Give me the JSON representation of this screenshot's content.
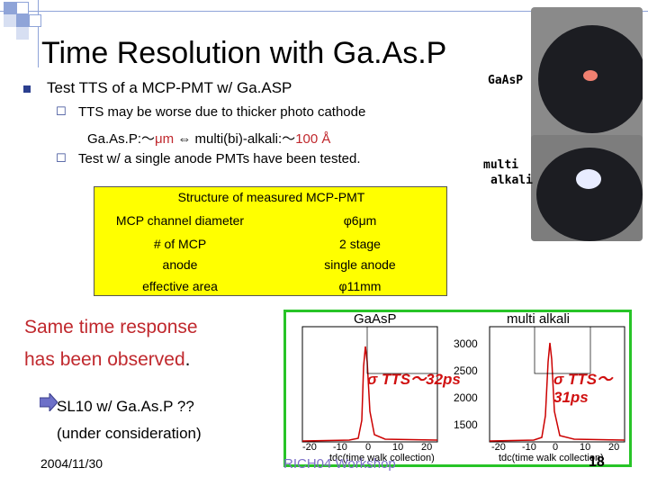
{
  "slide": {
    "title": "Time Resolution with Ga.As.P",
    "bullet1": "Test TTS of a MCP-PMT w/ Ga.ASP",
    "sub1_line1": "TTS may be worse due to thicker photo cathode",
    "sub1_line2_prefix": "Ga.As.P:～",
    "sub1_line2_unit": "μm",
    "sub1_line2_mid": " ⇔ multi(bi)-alkali:～",
    "sub1_line2_red": "100 Å",
    "sub2": "Test w/ a single anode PMTs have been tested.",
    "table": {
      "header": "Structure of measured MCP-PMT",
      "rows": [
        {
          "label": "MCP channel diameter",
          "value": "φ6μm"
        },
        {
          "label": "# of MCP",
          "value": "2 stage"
        },
        {
          "label": "anode",
          "value": "single anode"
        },
        {
          "label": "effective area",
          "value": "φ11mm"
        }
      ]
    },
    "statement_line1": "Same time response",
    "statement_line2": "has been observed",
    "statement_dot": ".",
    "next_line1": "SL10 w/ Ga.As.P ??",
    "next_line2": "(under consideration)",
    "date": "2004/11/30",
    "conference": "RICH04 Workshop",
    "page": "18",
    "photo_label1": "GaAsP",
    "photo_label2a": "multi",
    "photo_label2b": "alkali"
  },
  "plots": {
    "left_title": "GaAsP",
    "right_title": "multi alkali",
    "left_annotation": "σ TTS～32ps",
    "right_annotation": "σ TTS～31ps",
    "xlabel": "tdc(time walk collection)",
    "y_ticks_right": [
      "3000",
      "2500",
      "2000",
      "1500"
    ],
    "x_ticks": [
      "-20",
      "-10",
      "0",
      "10",
      "20"
    ]
  },
  "colors": {
    "accent_blue": "#2b3f8f",
    "highlight_red": "#c0282d",
    "table_yellow": "#ffff00",
    "plot_border_green": "#27c427"
  }
}
